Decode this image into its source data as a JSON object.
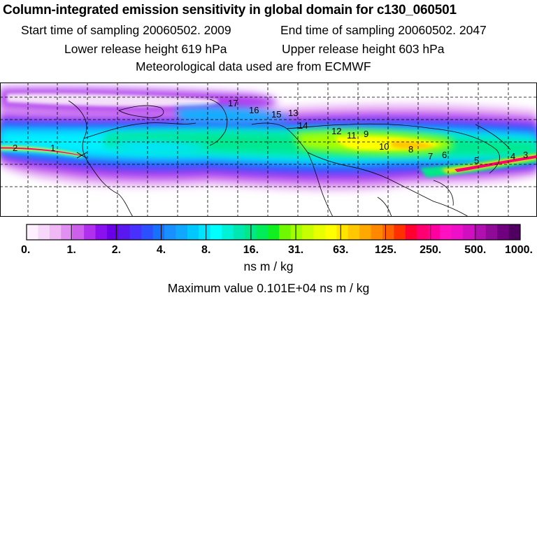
{
  "title": "Column-integrated emission sensitivity in global domain for c130_060501",
  "sampling": {
    "start": "Start time of sampling 20060502.  2009",
    "end": "End time of sampling 20060502.  2047"
  },
  "release": {
    "lower": "Lower release height  619 hPa",
    "upper": "Upper release height  603 hPa"
  },
  "met_source": "Meteorological data used are from ECMWF",
  "colorbar": {
    "tick_labels": [
      "0.",
      "1.",
      "2.",
      "4.",
      "8.",
      "16.",
      "31.",
      "63.",
      "125.",
      "250.",
      "500.",
      "1000."
    ],
    "colors": [
      "#fff0ff",
      "#f8d8fa",
      "#f0b8f5",
      "#e090f0",
      "#cc60ec",
      "#b030ee",
      "#8a10f0",
      "#6a00e8",
      "#5a18f0",
      "#4830ff",
      "#2c50ff",
      "#1870ff",
      "#1890ff",
      "#10a8ff",
      "#00c8ff",
      "#00e4ff",
      "#00ffff",
      "#00f2d6",
      "#00e8b0",
      "#00e888",
      "#00ec58",
      "#10f020",
      "#70f800",
      "#a0ff00",
      "#c8ff00",
      "#e8ff00",
      "#ffff00",
      "#ffe400",
      "#ffc800",
      "#ffa800",
      "#ff8800",
      "#ff6000",
      "#ff3000",
      "#ff0030",
      "#ff0070",
      "#ff00a0",
      "#ff10c0",
      "#ee10c8",
      "#d010c0",
      "#b010b0",
      "#900a98",
      "#700080",
      "#500060"
    ]
  },
  "unit_label": "ns m / kg",
  "max_value": "Maximum value  0.101E+04 ns m / kg",
  "map_labels": [
    "2",
    "1",
    "16",
    "15",
    "13",
    "14",
    "12",
    "11",
    "9",
    "10",
    "8",
    "7",
    "6",
    "5",
    "4",
    "3",
    "17"
  ]
}
